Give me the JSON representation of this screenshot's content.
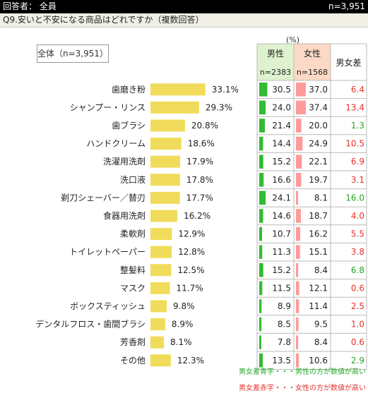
{
  "header": {
    "respondents": "回答者： 全員",
    "n": "n=3,951"
  },
  "question": "Q9.安いと不安になる商品はどれですか（複数回答）",
  "total_label": "全体（n=3,951）",
  "unit": "(%)",
  "table": {
    "male": "男性",
    "female": "女性",
    "diff": "男女差",
    "male_n": "n=2383",
    "female_n": "n=1568"
  },
  "legend": {
    "green": "男女差青字・・・男性の方が数値が高い",
    "red": "男女差赤字・・・女性の方が数値が高い"
  },
  "colors": {
    "bar": "#f0dc5a",
    "male": "#33bb33",
    "female": "#ff9a9a",
    "diff_red": "#e8322d",
    "diff_green": "#22aa22",
    "male_head": "#dff2cf",
    "female_head": "#fbd9c5",
    "grid": "#bbbbbb"
  },
  "chart_data": {
    "type": "bar",
    "categories": [
      "歯磨き粉",
      "シャンプー・リンス",
      "歯ブラシ",
      "ハンドクリーム",
      "洗濯用洗剤",
      "洗口液",
      "剃刀シェーバー／替刃",
      "食器用洗剤",
      "柔軟剤",
      "トイレットペーパー",
      "整髪料",
      "マスク",
      "ボックスティッシュ",
      "デンタルフロス・歯間ブラシ",
      "芳香剤",
      "その他"
    ],
    "values": [
      33.1,
      29.3,
      20.8,
      18.6,
      17.9,
      17.8,
      17.7,
      16.2,
      12.9,
      12.8,
      12.5,
      11.7,
      9.8,
      8.9,
      8.1,
      12.3
    ],
    "value_labels": [
      "33.1%",
      "29.3%",
      "20.8%",
      "18.6%",
      "17.9%",
      "17.8%",
      "17.7%",
      "16.2%",
      "12.9%",
      "12.8%",
      "12.5%",
      "11.7%",
      "9.8%",
      "8.9%",
      "8.1%",
      "12.3%"
    ],
    "male": [
      "30.5",
      "24.0",
      "21.4",
      "14.4",
      "15.2",
      "16.6",
      "24.1",
      "14.6",
      "10.7",
      "11.3",
      "15.2",
      "11.5",
      "8.9",
      "8.5",
      "7.8",
      "13.5"
    ],
    "female": [
      "37.0",
      "37.4",
      "20.0",
      "24.9",
      "22.1",
      "19.7",
      "8.1",
      "18.7",
      "16.2",
      "15.1",
      "8.4",
      "12.1",
      "11.4",
      "9.5",
      "8.4",
      "10.6"
    ],
    "diff": [
      "6.4",
      "13.4",
      "1.3",
      "10.5",
      "6.9",
      "3.1",
      "16.0",
      "4.0",
      "5.5",
      "3.8",
      "6.8",
      "0.6",
      "2.5",
      "1.0",
      "0.6",
      "2.9"
    ],
    "diff_higher": [
      "female",
      "female",
      "male",
      "female",
      "female",
      "female",
      "male",
      "female",
      "female",
      "female",
      "male",
      "female",
      "female",
      "female",
      "female",
      "male"
    ]
  }
}
